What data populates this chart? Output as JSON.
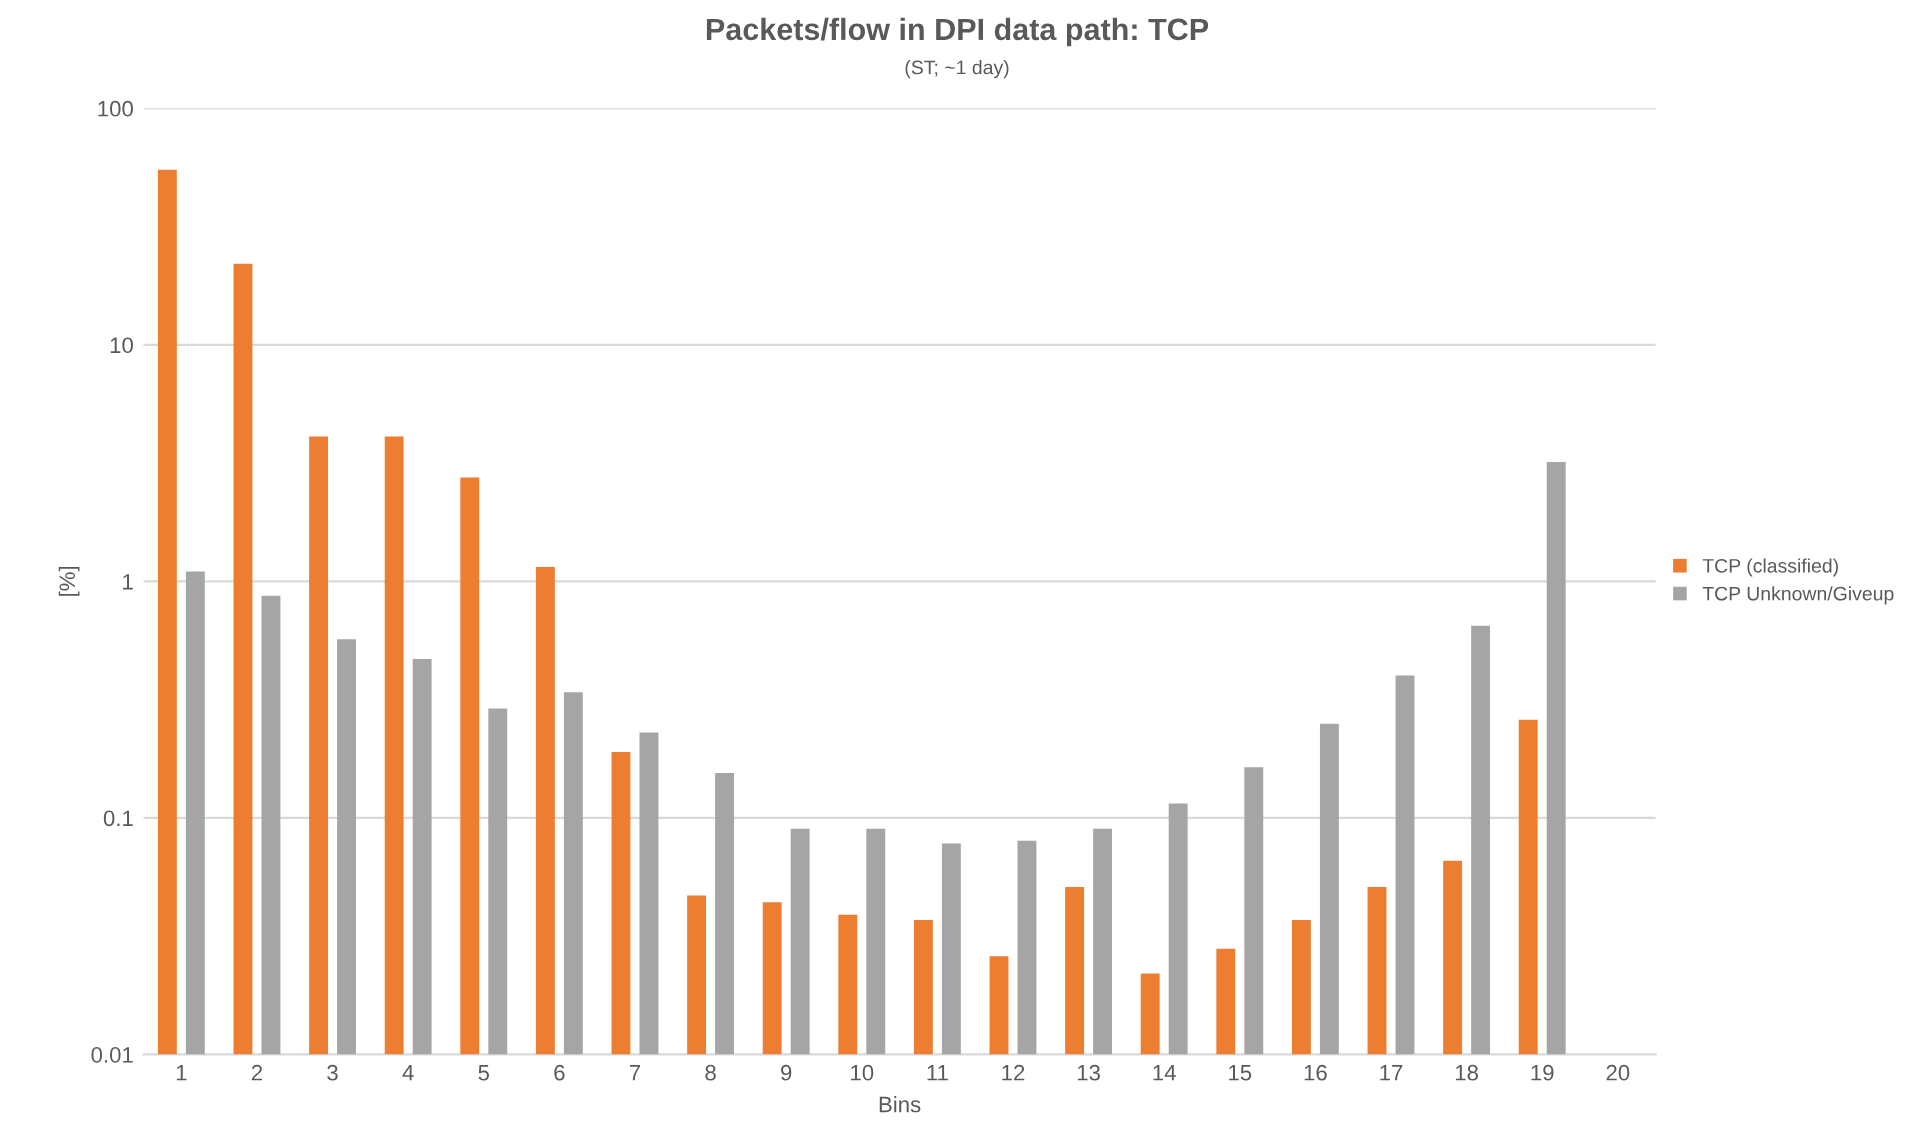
{
  "chart_data": {
    "type": "bar",
    "title": "Packets/flow in DPI data path: TCP",
    "subtitle": "(ST; ~1 day)",
    "xlabel": "Bins",
    "ylabel": "[%]",
    "categories": [
      "1",
      "2",
      "3",
      "4",
      "5",
      "6",
      "7",
      "8",
      "9",
      "10",
      "11",
      "12",
      "13",
      "14",
      "15",
      "16",
      "17",
      "18",
      "19",
      "20"
    ],
    "series": [
      {
        "name": "TCP (classified)",
        "color": "#ed7d31",
        "values": [
          55,
          22,
          4.1,
          4.1,
          2.75,
          1.15,
          0.19,
          0.047,
          0.044,
          0.039,
          0.037,
          0.026,
          0.051,
          0.022,
          0.028,
          0.037,
          0.051,
          0.066,
          0.26,
          null
        ]
      },
      {
        "name": "TCP Unknown/Giveup",
        "color": "#a5a5a5",
        "values": [
          1.1,
          0.87,
          0.57,
          0.47,
          0.29,
          0.34,
          0.23,
          0.155,
          0.09,
          0.09,
          0.078,
          0.08,
          0.09,
          0.115,
          0.164,
          0.25,
          0.4,
          0.65,
          3.2,
          null
        ]
      }
    ],
    "log": "y",
    "ylim": [
      0.01,
      100
    ],
    "yticks": [
      0.01,
      0.1,
      1,
      10,
      100
    ],
    "grid": "y",
    "legend": "right"
  }
}
